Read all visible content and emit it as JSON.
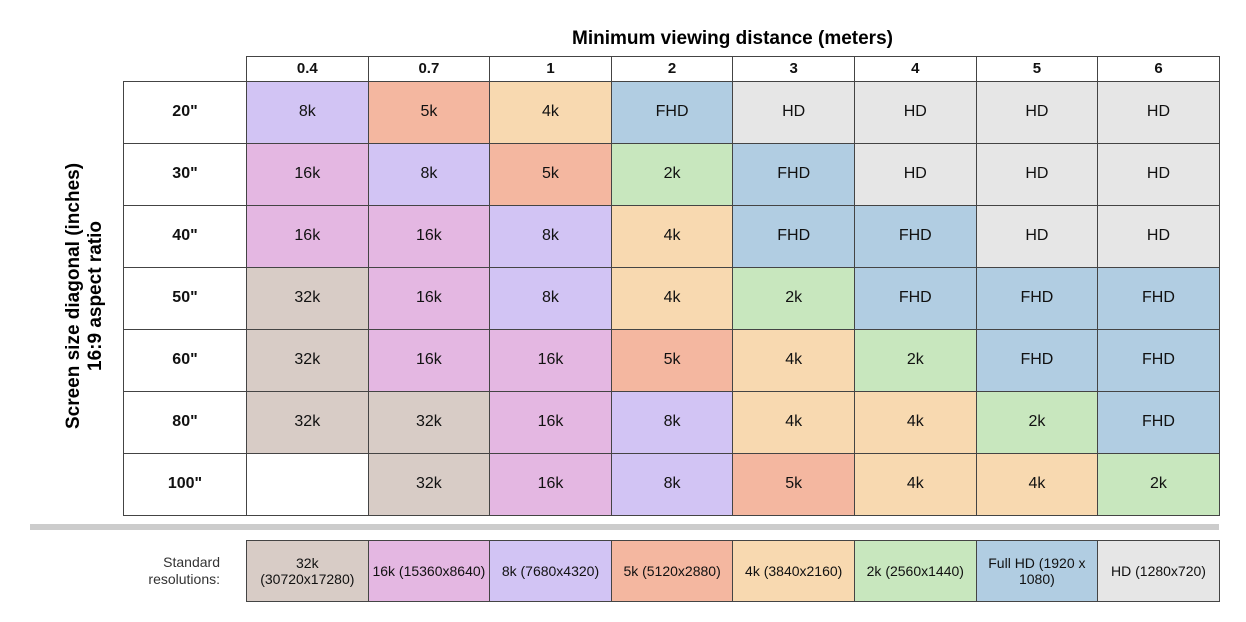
{
  "title": "Minimum viewing distance (meters)",
  "side_label": [
    "Screen size diagonal (inches)",
    "16:9 aspect ratio"
  ],
  "columns": [
    "0.4",
    "0.7",
    "1",
    "2",
    "3",
    "4",
    "5",
    "6"
  ],
  "rows": [
    {
      "label": "20\"",
      "cells": [
        "8k",
        "5k",
        "4k",
        "FHD",
        "HD",
        "HD",
        "HD",
        "HD"
      ]
    },
    {
      "label": "30\"",
      "cells": [
        "16k",
        "8k",
        "5k",
        "2k",
        "FHD",
        "HD",
        "HD",
        "HD"
      ]
    },
    {
      "label": "40\"",
      "cells": [
        "16k",
        "16k",
        "8k",
        "4k",
        "FHD",
        "FHD",
        "HD",
        "HD"
      ]
    },
    {
      "label": "50\"",
      "cells": [
        "32k",
        "16k",
        "8k",
        "4k",
        "2k",
        "FHD",
        "FHD",
        "FHD"
      ]
    },
    {
      "label": "60\"",
      "cells": [
        "32k",
        "16k",
        "16k",
        "5k",
        "4k",
        "2k",
        "FHD",
        "FHD"
      ]
    },
    {
      "label": "80\"",
      "cells": [
        "32k",
        "32k",
        "16k",
        "8k",
        "4k",
        "4k",
        "2k",
        "FHD"
      ]
    },
    {
      "label": "100\"",
      "cells": [
        null,
        "32k",
        "16k",
        "8k",
        "5k",
        "4k",
        "4k",
        "2k"
      ]
    }
  ],
  "palette": {
    "32k": "#d8ccc6",
    "16k": "#e4b7e2",
    "8k": "#d2c4f4",
    "5k": "#f4b7a0",
    "4k": "#f8d9b0",
    "2k": "#c8e7be",
    "FHD": "#b1cde2",
    "HD": "#e6e6e6"
  },
  "legend": {
    "label": "Standard resolutions:",
    "items": [
      {
        "label": "32k (30720x17280)",
        "color": "#d8ccc6"
      },
      {
        "label": "16k (15360x8640)",
        "color": "#e4b7e2"
      },
      {
        "label": "8k (7680x4320)",
        "color": "#d2c4f4"
      },
      {
        "label": "5k (5120x2880)",
        "color": "#f4b7a0"
      },
      {
        "label": "4k (3840x2160)",
        "color": "#f8d9b0"
      },
      {
        "label": "2k (2560x1440)",
        "color": "#c8e7be"
      },
      {
        "label": "Full HD (1920 x 1080)",
        "color": "#b1cde2"
      },
      {
        "label": "HD (1280x720)",
        "color": "#e6e6e6"
      }
    ]
  }
}
